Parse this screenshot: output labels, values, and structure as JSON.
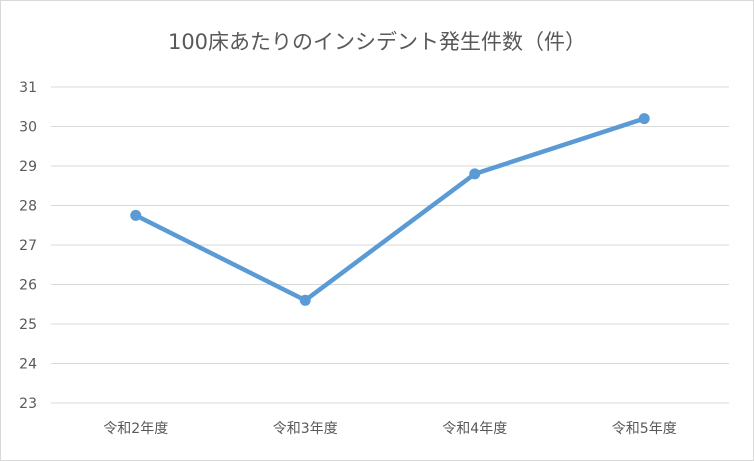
{
  "chart_data": {
    "type": "line",
    "title": "100床あたりのインシデント発生件数（件）",
    "xlabel": "",
    "ylabel": "",
    "categories": [
      "令和2年度",
      "令和3年度",
      "令和4年度",
      "令和5年度"
    ],
    "series": [
      {
        "values": [
          27.75,
          25.6,
          28.8,
          30.2
        ]
      }
    ],
    "ylim": [
      23,
      31
    ],
    "yticks": [
      23,
      24,
      25,
      26,
      27,
      28,
      29,
      30,
      31
    ],
    "grid": true,
    "legend": "none",
    "colors": {
      "line": "#5b9bd5",
      "grid": "#d9d9d9",
      "text": "#595959"
    }
  }
}
